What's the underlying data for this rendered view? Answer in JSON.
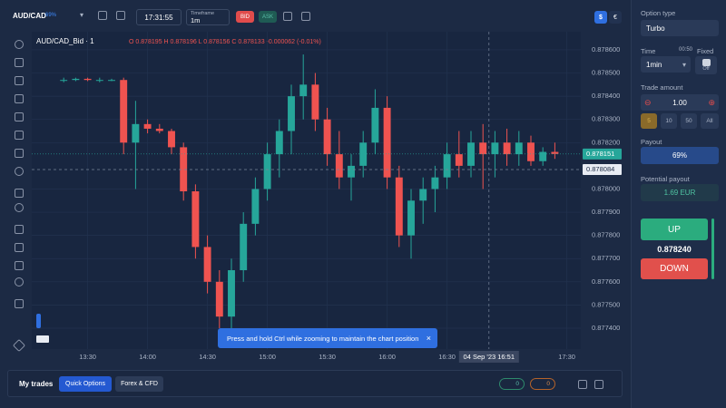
{
  "topbar": {
    "symbol": "AUD/CAD",
    "symbol_payout": "69%",
    "clock": "17:31:55",
    "timeframe_label": "Timeframe",
    "timeframe": "1m",
    "bid": "BID",
    "ask": "ASK",
    "currency_usd": "$",
    "currency_eur": "€"
  },
  "chart": {
    "type": "candlestick",
    "legend_title": "AUD/CAD_Bid · 1",
    "ohlc_text": "O 0.878195 H 0.878196 L 0.878156 C 0.878133 -0.000062 (-0.01%)",
    "up_color": "#26a69a",
    "down_color": "#ef5350",
    "xlim": [
      782,
      1057
    ],
    "ylim": [
      0.87731,
      0.878678
    ],
    "xticks": [
      {
        "value": 810,
        "label": "13:30"
      },
      {
        "value": 840,
        "label": "14:00"
      },
      {
        "value": 870,
        "label": "14:30"
      },
      {
        "value": 900,
        "label": "15:00"
      },
      {
        "value": 930,
        "label": "15:30"
      },
      {
        "value": 960,
        "label": "16:00"
      },
      {
        "value": 990,
        "label": "16:30"
      },
      {
        "value": 1050,
        "label": "17:30"
      }
    ],
    "yticks": [
      {
        "value": 0.8786,
        "label": "0.878600"
      },
      {
        "value": 0.8785,
        "label": "0.878500"
      },
      {
        "value": 0.8784,
        "label": "0.878400"
      },
      {
        "value": 0.8783,
        "label": "0.878300"
      },
      {
        "value": 0.8782,
        "label": "0.878200"
      },
      {
        "value": 0.878,
        "label": "0.878000"
      },
      {
        "value": 0.8779,
        "label": "0.877900"
      },
      {
        "value": 0.8778,
        "label": "0.877800"
      },
      {
        "value": 0.8777,
        "label": "0.877700"
      },
      {
        "value": 0.8776,
        "label": "0.877600"
      },
      {
        "value": 0.8775,
        "label": "0.877500"
      },
      {
        "value": 0.8774,
        "label": "0.877400"
      }
    ],
    "price_tag": 0.878151,
    "crosshair": {
      "time": 1011,
      "time_label": "04 Sep '23   16:51",
      "price": 0.878084
    },
    "candles": [
      {
        "t": 798,
        "o": 0.87847,
        "h": 0.87848,
        "l": 0.87846,
        "c": 0.87847
      },
      {
        "t": 804,
        "o": 0.87847,
        "h": 0.87848,
        "l": 0.878465,
        "c": 0.878475
      },
      {
        "t": 810,
        "o": 0.878475,
        "h": 0.87848,
        "l": 0.878465,
        "c": 0.87847
      },
      {
        "t": 816,
        "o": 0.87847,
        "h": 0.87848,
        "l": 0.87846,
        "c": 0.87847
      },
      {
        "t": 822,
        "o": 0.87847,
        "h": 0.878475,
        "l": 0.878465,
        "c": 0.87847
      },
      {
        "t": 828,
        "o": 0.87847,
        "h": 0.87848,
        "l": 0.87815,
        "c": 0.8782
      },
      {
        "t": 834,
        "o": 0.8782,
        "h": 0.87838,
        "l": 0.878,
        "c": 0.87828
      },
      {
        "t": 840,
        "o": 0.87828,
        "h": 0.8783,
        "l": 0.87824,
        "c": 0.87826
      },
      {
        "t": 846,
        "o": 0.87826,
        "h": 0.87828,
        "l": 0.87824,
        "c": 0.87825
      },
      {
        "t": 852,
        "o": 0.87825,
        "h": 0.87826,
        "l": 0.87815,
        "c": 0.87818
      },
      {
        "t": 858,
        "o": 0.87818,
        "h": 0.8782,
        "l": 0.87795,
        "c": 0.87799
      },
      {
        "t": 864,
        "o": 0.87799,
        "h": 0.87802,
        "l": 0.8777,
        "c": 0.87775
      },
      {
        "t": 870,
        "o": 0.87775,
        "h": 0.8778,
        "l": 0.87755,
        "c": 0.8776
      },
      {
        "t": 876,
        "o": 0.8776,
        "h": 0.87765,
        "l": 0.8774,
        "c": 0.87745
      },
      {
        "t": 882,
        "o": 0.87745,
        "h": 0.8777,
        "l": 0.87738,
        "c": 0.87765
      },
      {
        "t": 888,
        "o": 0.87765,
        "h": 0.8779,
        "l": 0.8776,
        "c": 0.87785
      },
      {
        "t": 894,
        "o": 0.87785,
        "h": 0.87805,
        "l": 0.8778,
        "c": 0.878
      },
      {
        "t": 900,
        "o": 0.878,
        "h": 0.8782,
        "l": 0.87795,
        "c": 0.87815
      },
      {
        "t": 906,
        "o": 0.87815,
        "h": 0.8783,
        "l": 0.87805,
        "c": 0.87825
      },
      {
        "t": 912,
        "o": 0.87825,
        "h": 0.87845,
        "l": 0.87815,
        "c": 0.8784
      },
      {
        "t": 918,
        "o": 0.8784,
        "h": 0.87858,
        "l": 0.8783,
        "c": 0.87845
      },
      {
        "t": 924,
        "o": 0.87845,
        "h": 0.8785,
        "l": 0.87825,
        "c": 0.8783
      },
      {
        "t": 930,
        "o": 0.8783,
        "h": 0.87835,
        "l": 0.8781,
        "c": 0.87815
      },
      {
        "t": 936,
        "o": 0.87815,
        "h": 0.87825,
        "l": 0.878,
        "c": 0.87805
      },
      {
        "t": 942,
        "o": 0.87805,
        "h": 0.87815,
        "l": 0.87795,
        "c": 0.8781
      },
      {
        "t": 948,
        "o": 0.8781,
        "h": 0.87825,
        "l": 0.87805,
        "c": 0.8782
      },
      {
        "t": 954,
        "o": 0.8782,
        "h": 0.87843,
        "l": 0.87815,
        "c": 0.87835
      },
      {
        "t": 960,
        "o": 0.87835,
        "h": 0.8784,
        "l": 0.878,
        "c": 0.87805
      },
      {
        "t": 966,
        "o": 0.87805,
        "h": 0.8781,
        "l": 0.87775,
        "c": 0.8778
      },
      {
        "t": 972,
        "o": 0.8778,
        "h": 0.878,
        "l": 0.8777,
        "c": 0.87795
      },
      {
        "t": 978,
        "o": 0.87795,
        "h": 0.87805,
        "l": 0.87785,
        "c": 0.878
      },
      {
        "t": 984,
        "o": 0.878,
        "h": 0.8781,
        "l": 0.8779,
        "c": 0.87805
      },
      {
        "t": 990,
        "o": 0.87805,
        "h": 0.8782,
        "l": 0.878,
        "c": 0.87815
      },
      {
        "t": 996,
        "o": 0.87815,
        "h": 0.87825,
        "l": 0.87805,
        "c": 0.8781
      },
      {
        "t": 1002,
        "o": 0.8781,
        "h": 0.87825,
        "l": 0.87805,
        "c": 0.8782
      },
      {
        "t": 1008,
        "o": 0.8782,
        "h": 0.87828,
        "l": 0.878,
        "c": 0.87815
      },
      {
        "t": 1014,
        "o": 0.87815,
        "h": 0.87825,
        "l": 0.87805,
        "c": 0.8782
      },
      {
        "t": 1020,
        "o": 0.8782,
        "h": 0.87826,
        "l": 0.8781,
        "c": 0.87815
      },
      {
        "t": 1026,
        "o": 0.87815,
        "h": 0.87825,
        "l": 0.8781,
        "c": 0.8782
      },
      {
        "t": 1032,
        "o": 0.8782,
        "h": 0.87823,
        "l": 0.8781,
        "c": 0.87812
      },
      {
        "t": 1038,
        "o": 0.87812,
        "h": 0.87818,
        "l": 0.8781,
        "c": 0.87816
      },
      {
        "t": 1044,
        "o": 0.87816,
        "h": 0.8782,
        "l": 0.87813,
        "c": 0.878151
      }
    ]
  },
  "toast": "Press and hold Ctrl while zooming to maintain the chart position",
  "bottombar": {
    "title": "My trades",
    "tab_quick": "Quick Options",
    "tab_forex": "Forex & CFD",
    "badge_1": "0",
    "badge_2": "0"
  },
  "panel": {
    "option_type_label": "Option type",
    "option_type": "Turbo",
    "time_label": "Time",
    "time_countdown": "00:50",
    "fixed_label": "Fixed",
    "time_value": "1min",
    "toggle": "Off",
    "amount_label": "Trade amount",
    "amount": "1.00",
    "preset_1": "5",
    "preset_2": "10",
    "preset_3": "50",
    "preset_4": "All",
    "payout_label": "Payout",
    "payout": "69%",
    "potential_label": "Potential payout",
    "potential": "1.69 EUR",
    "up": "UP",
    "current_price": "0.878240",
    "down": "DOWN"
  }
}
